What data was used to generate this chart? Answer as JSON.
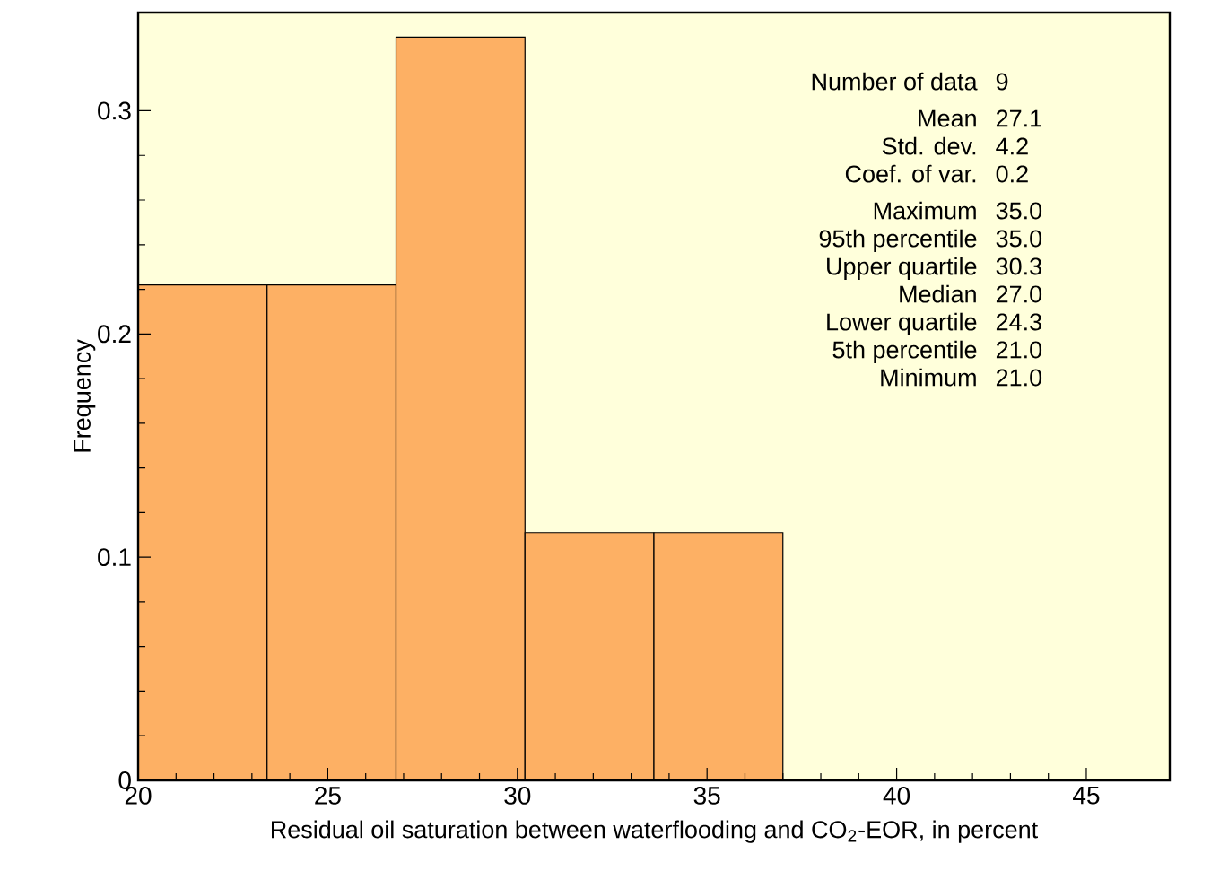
{
  "chart_data": {
    "type": "histogram",
    "xlabel": "Residual oil saturation between waterflooding and CO$_{2}$-EOR, in percent",
    "ylabel": "Frequency",
    "bins": [
      20,
      23.4,
      26.8,
      30.2,
      33.6,
      37.0
    ],
    "values": [
      0.222,
      0.222,
      0.333,
      0.111,
      0.111
    ],
    "color": "#fdb064",
    "xlim": [
      20,
      47.2
    ],
    "ylim": [
      0,
      0.344
    ],
    "xticks": [
      20,
      25,
      30,
      35,
      40,
      45
    ],
    "yticks": [
      0,
      0.1,
      0.2,
      0.3
    ],
    "grid": false,
    "annotations": [
      "Number of data",
      "9",
      "Mean",
      "27.1",
      "Std. dev.",
      "4.2",
      "Coef. of var.",
      "0.2",
      "Maximum",
      "35.0",
      "95th percentile",
      "35.0",
      "Upper quartile",
      "30.3",
      "Median",
      "27.0",
      "Lower quartile",
      "24.3",
      "5th percentile",
      "21.0",
      "Minimum",
      "21.0"
    ]
  }
}
